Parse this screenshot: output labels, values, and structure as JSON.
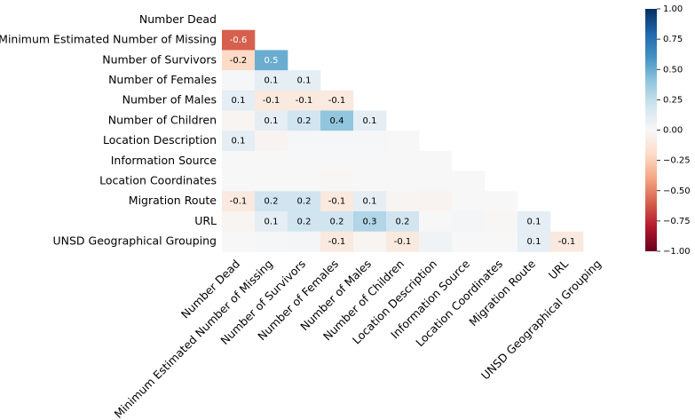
{
  "chart_data": {
    "type": "heatmap",
    "row_labels": [
      "Number Dead",
      "Minimum Estimated Number of Missing",
      "Number of Survivors",
      "Number of Females",
      "Number of Males",
      "Number of Children",
      "Location Description",
      "Information Source",
      "Location Coordinates",
      "Migration Route",
      "URL",
      "UNSD Geographical Grouping"
    ],
    "column_labels": [
      "Number Dead",
      "Minimum Estimated Number of Missing",
      "Number of Survivors",
      "Number of Females",
      "Number of Males",
      "Number of Children",
      "Location Description",
      "Information Source",
      "Location Coordinates",
      "Migration Route",
      "URL",
      "UNSD Geographical Grouping"
    ],
    "values": [
      [
        null,
        null,
        null,
        null,
        null,
        null,
        null,
        null,
        null,
        null,
        null,
        null
      ],
      [
        -0.6,
        null,
        null,
        null,
        null,
        null,
        null,
        null,
        null,
        null,
        null,
        null
      ],
      [
        -0.2,
        0.5,
        null,
        null,
        null,
        null,
        null,
        null,
        null,
        null,
        null,
        null
      ],
      [
        0.01,
        0.1,
        0.1,
        null,
        null,
        null,
        null,
        null,
        null,
        null,
        null,
        null
      ],
      [
        0.1,
        -0.1,
        -0.1,
        -0.1,
        null,
        null,
        null,
        null,
        null,
        null,
        null,
        null
      ],
      [
        -0.02,
        0.1,
        0.2,
        0.4,
        0.1,
        null,
        null,
        null,
        null,
        null,
        null,
        null
      ],
      [
        0.1,
        -0.03,
        0.01,
        0.01,
        0.01,
        0,
        null,
        null,
        null,
        null,
        null,
        null
      ],
      [
        0,
        0,
        0,
        0,
        0,
        0,
        0,
        null,
        null,
        null,
        null,
        null
      ],
      [
        0,
        0,
        0,
        -0.01,
        0,
        0,
        0,
        0,
        null,
        null,
        null,
        null
      ],
      [
        -0.1,
        0.2,
        0.2,
        -0.1,
        0.1,
        -0.02,
        -0.03,
        0,
        0,
        null,
        null,
        null
      ],
      [
        -0.02,
        0.1,
        0.2,
        0.2,
        0.3,
        0.2,
        0,
        0.02,
        -0.01,
        0.1,
        null,
        null
      ],
      [
        0,
        0.01,
        0.02,
        -0.1,
        -0.02,
        -0.1,
        0.04,
        0,
        0,
        0.1,
        -0.1,
        null
      ]
    ],
    "value_labels": [
      [
        null,
        null,
        null,
        null,
        null,
        null,
        null,
        null,
        null,
        null,
        null,
        null
      ],
      [
        "-0.6",
        null,
        null,
        null,
        null,
        null,
        null,
        null,
        null,
        null,
        null,
        null
      ],
      [
        "-0.2",
        "0.5",
        null,
        null,
        null,
        null,
        null,
        null,
        null,
        null,
        null,
        null
      ],
      [
        null,
        "0.1",
        "0.1",
        null,
        null,
        null,
        null,
        null,
        null,
        null,
        null,
        null
      ],
      [
        "0.1",
        "-0.1",
        "-0.1",
        "-0.1",
        null,
        null,
        null,
        null,
        null,
        null,
        null,
        null
      ],
      [
        null,
        "0.1",
        "0.2",
        "0.4",
        "0.1",
        null,
        null,
        null,
        null,
        null,
        null,
        null
      ],
      [
        "0.1",
        null,
        null,
        null,
        null,
        null,
        null,
        null,
        null,
        null,
        null,
        null
      ],
      [
        null,
        null,
        null,
        null,
        null,
        null,
        null,
        null,
        null,
        null,
        null,
        null
      ],
      [
        null,
        null,
        null,
        null,
        null,
        null,
        null,
        null,
        null,
        null,
        null,
        null
      ],
      [
        "-0.1",
        "0.2",
        "0.2",
        "-0.1",
        "0.1",
        null,
        null,
        null,
        null,
        null,
        null,
        null
      ],
      [
        null,
        "0.1",
        "0.2",
        "0.2",
        "0.3",
        "0.2",
        null,
        null,
        null,
        "0.1",
        null,
        null
      ],
      [
        null,
        null,
        null,
        "-0.1",
        null,
        "-0.1",
        null,
        null,
        null,
        "0.1",
        "-0.1",
        null
      ]
    ],
    "colormap": [
      "#67001f",
      "#b2182b",
      "#d6604d",
      "#f4a582",
      "#fddbc7",
      "#f7f7f7",
      "#d1e5f0",
      "#92c5de",
      "#4393c3",
      "#2166ac",
      "#053061"
    ],
    "clim": [
      -1,
      1
    ],
    "cticks": [
      {
        "value": -1,
        "label": "−1.00"
      },
      {
        "value": -0.75,
        "label": "−0.75"
      },
      {
        "value": -0.5,
        "label": "−0.50"
      },
      {
        "value": -0.25,
        "label": "−0.25"
      },
      {
        "value": 0,
        "label": "0.00"
      },
      {
        "value": 0.25,
        "label": "0.25"
      },
      {
        "value": 0.5,
        "label": "0.50"
      },
      {
        "value": 0.75,
        "label": "0.75"
      },
      {
        "value": 1,
        "label": "1.00"
      }
    ]
  }
}
